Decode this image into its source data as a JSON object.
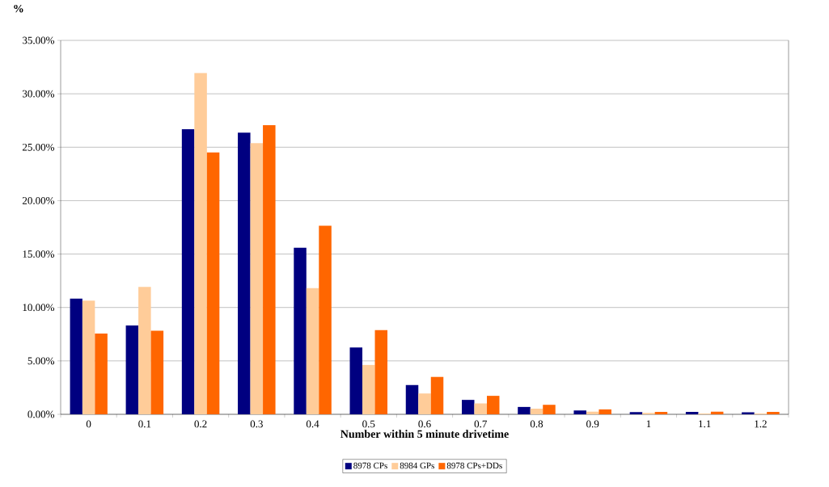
{
  "chart_data": {
    "type": "bar",
    "ylabel": "%",
    "xlabel": "Number within 5 minute drivetime",
    "categories": [
      "0",
      "0.1",
      "0.2",
      "0.3",
      "0.4",
      "0.5",
      "0.6",
      "0.7",
      "0.8",
      "0.9",
      "1",
      "1.1",
      "1.2"
    ],
    "series": [
      {
        "name": "8978 CPs",
        "color": "#000080",
        "values": [
          10.82,
          8.32,
          26.68,
          26.37,
          15.6,
          6.26,
          2.74,
          1.35,
          0.69,
          0.36,
          0.2,
          0.23,
          0.18
        ]
      },
      {
        "name": "8984 GPs",
        "color": "#ffcc99",
        "values": [
          10.64,
          11.92,
          31.95,
          25.38,
          11.82,
          4.62,
          1.95,
          1.02,
          0.53,
          0.25,
          0.13,
          0.08,
          0.08
        ]
      },
      {
        "name": "8978 CPs+DDs",
        "color": "#ff6600",
        "values": [
          7.56,
          7.82,
          24.52,
          27.07,
          17.66,
          7.88,
          3.5,
          1.73,
          0.89,
          0.46,
          0.23,
          0.25,
          0.23
        ]
      }
    ],
    "ylim": [
      0,
      35
    ],
    "yticks": [
      {
        "value": 0,
        "label": "0.00%"
      },
      {
        "value": 5,
        "label": "5.00%"
      },
      {
        "value": 10,
        "label": "10.00%"
      },
      {
        "value": 15,
        "label": "15.00%"
      },
      {
        "value": 20,
        "label": "20.00%"
      },
      {
        "value": 25,
        "label": "25.00%"
      },
      {
        "value": 30,
        "label": "30.00%"
      },
      {
        "value": 35,
        "label": "35.00%"
      }
    ],
    "grid": "y",
    "legend": "bottom"
  }
}
